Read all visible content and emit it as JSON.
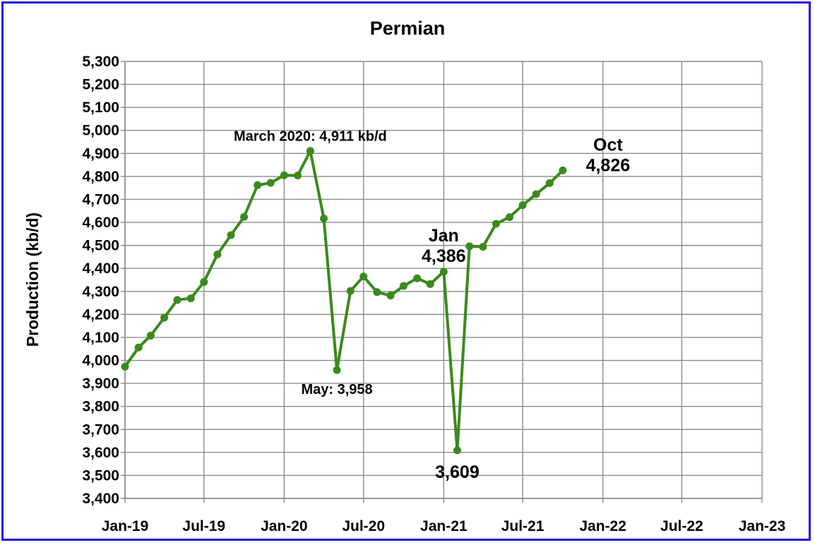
{
  "chart_data": {
    "type": "line",
    "title": "Permian",
    "xlabel": "",
    "ylabel": "Production (kb/d)",
    "ylim": [
      3400,
      5300
    ],
    "ytick_step": 100,
    "yticks": [
      "3,400",
      "3,500",
      "3,600",
      "3,700",
      "3,800",
      "3,900",
      "4,000",
      "4,100",
      "4,200",
      "4,300",
      "4,400",
      "4,500",
      "4,600",
      "4,700",
      "4,800",
      "4,900",
      "5,000",
      "5,100",
      "5,200",
      "5,300"
    ],
    "xlim": [
      "2019-01-01",
      "2023-01-01"
    ],
    "xticks": [
      {
        "date": "2019-01-01",
        "label": "Jan-19"
      },
      {
        "date": "2019-07-01",
        "label": "Jul-19"
      },
      {
        "date": "2020-01-01",
        "label": "Jan-20"
      },
      {
        "date": "2020-07-01",
        "label": "Jul-20"
      },
      {
        "date": "2021-01-01",
        "label": "Jan-21"
      },
      {
        "date": "2021-07-01",
        "label": "Jul-21"
      },
      {
        "date": "2022-01-01",
        "label": "Jan-22"
      },
      {
        "date": "2022-07-01",
        "label": "Jul-22"
      },
      {
        "date": "2023-01-01",
        "label": "Jan-23"
      }
    ],
    "grid": true,
    "line_color": "#3a8a1c",
    "series": [
      {
        "name": "",
        "points": [
          {
            "x": "2019-01",
            "y": 3973
          },
          {
            "x": "2019-02",
            "y": 4056
          },
          {
            "x": "2019-03",
            "y": 4108
          },
          {
            "x": "2019-04",
            "y": 4186
          },
          {
            "x": "2019-05",
            "y": 4263
          },
          {
            "x": "2019-06",
            "y": 4270
          },
          {
            "x": "2019-07",
            "y": 4341
          },
          {
            "x": "2019-08",
            "y": 4461
          },
          {
            "x": "2019-09",
            "y": 4545
          },
          {
            "x": "2019-10",
            "y": 4624
          },
          {
            "x": "2019-11",
            "y": 4762
          },
          {
            "x": "2019-12",
            "y": 4772
          },
          {
            "x": "2020-01",
            "y": 4805
          },
          {
            "x": "2020-02",
            "y": 4804
          },
          {
            "x": "2020-03",
            "y": 4911
          },
          {
            "x": "2020-04",
            "y": 4617
          },
          {
            "x": "2020-05",
            "y": 3958
          },
          {
            "x": "2020-06",
            "y": 4302
          },
          {
            "x": "2020-07",
            "y": 4365
          },
          {
            "x": "2020-08",
            "y": 4297
          },
          {
            "x": "2020-09",
            "y": 4282
          },
          {
            "x": "2020-10",
            "y": 4324
          },
          {
            "x": "2020-11",
            "y": 4357
          },
          {
            "x": "2020-12",
            "y": 4332
          },
          {
            "x": "2021-01",
            "y": 4386
          },
          {
            "x": "2021-02",
            "y": 3609
          },
          {
            "x": "2021-03",
            "y": 4496
          },
          {
            "x": "2021-04",
            "y": 4494
          },
          {
            "x": "2021-05",
            "y": 4594
          },
          {
            "x": "2021-06",
            "y": 4623
          },
          {
            "x": "2021-07",
            "y": 4675
          },
          {
            "x": "2021-08",
            "y": 4723
          },
          {
            "x": "2021-09",
            "y": 4771
          },
          {
            "x": "2021-10",
            "y": 4826
          }
        ]
      }
    ],
    "annotations": [
      {
        "lines": [
          "March 2020: 4,911 kb/d"
        ],
        "x": "2020-03",
        "y": 4911,
        "size": "small",
        "place": "above"
      },
      {
        "lines": [
          "May: 3,958"
        ],
        "x": "2020-05",
        "y": 3958,
        "size": "small",
        "place": "below"
      },
      {
        "lines": [
          "Jan",
          "4,386"
        ],
        "x": "2021-01",
        "y": 4386,
        "size": "large",
        "place": "above"
      },
      {
        "lines": [
          "3,609"
        ],
        "x": "2021-02",
        "y": 3609,
        "size": "large",
        "place": "below"
      },
      {
        "lines": [
          "Oct",
          "4,826"
        ],
        "x": "2021-10",
        "y": 4826,
        "size": "large",
        "place": "right"
      }
    ]
  }
}
